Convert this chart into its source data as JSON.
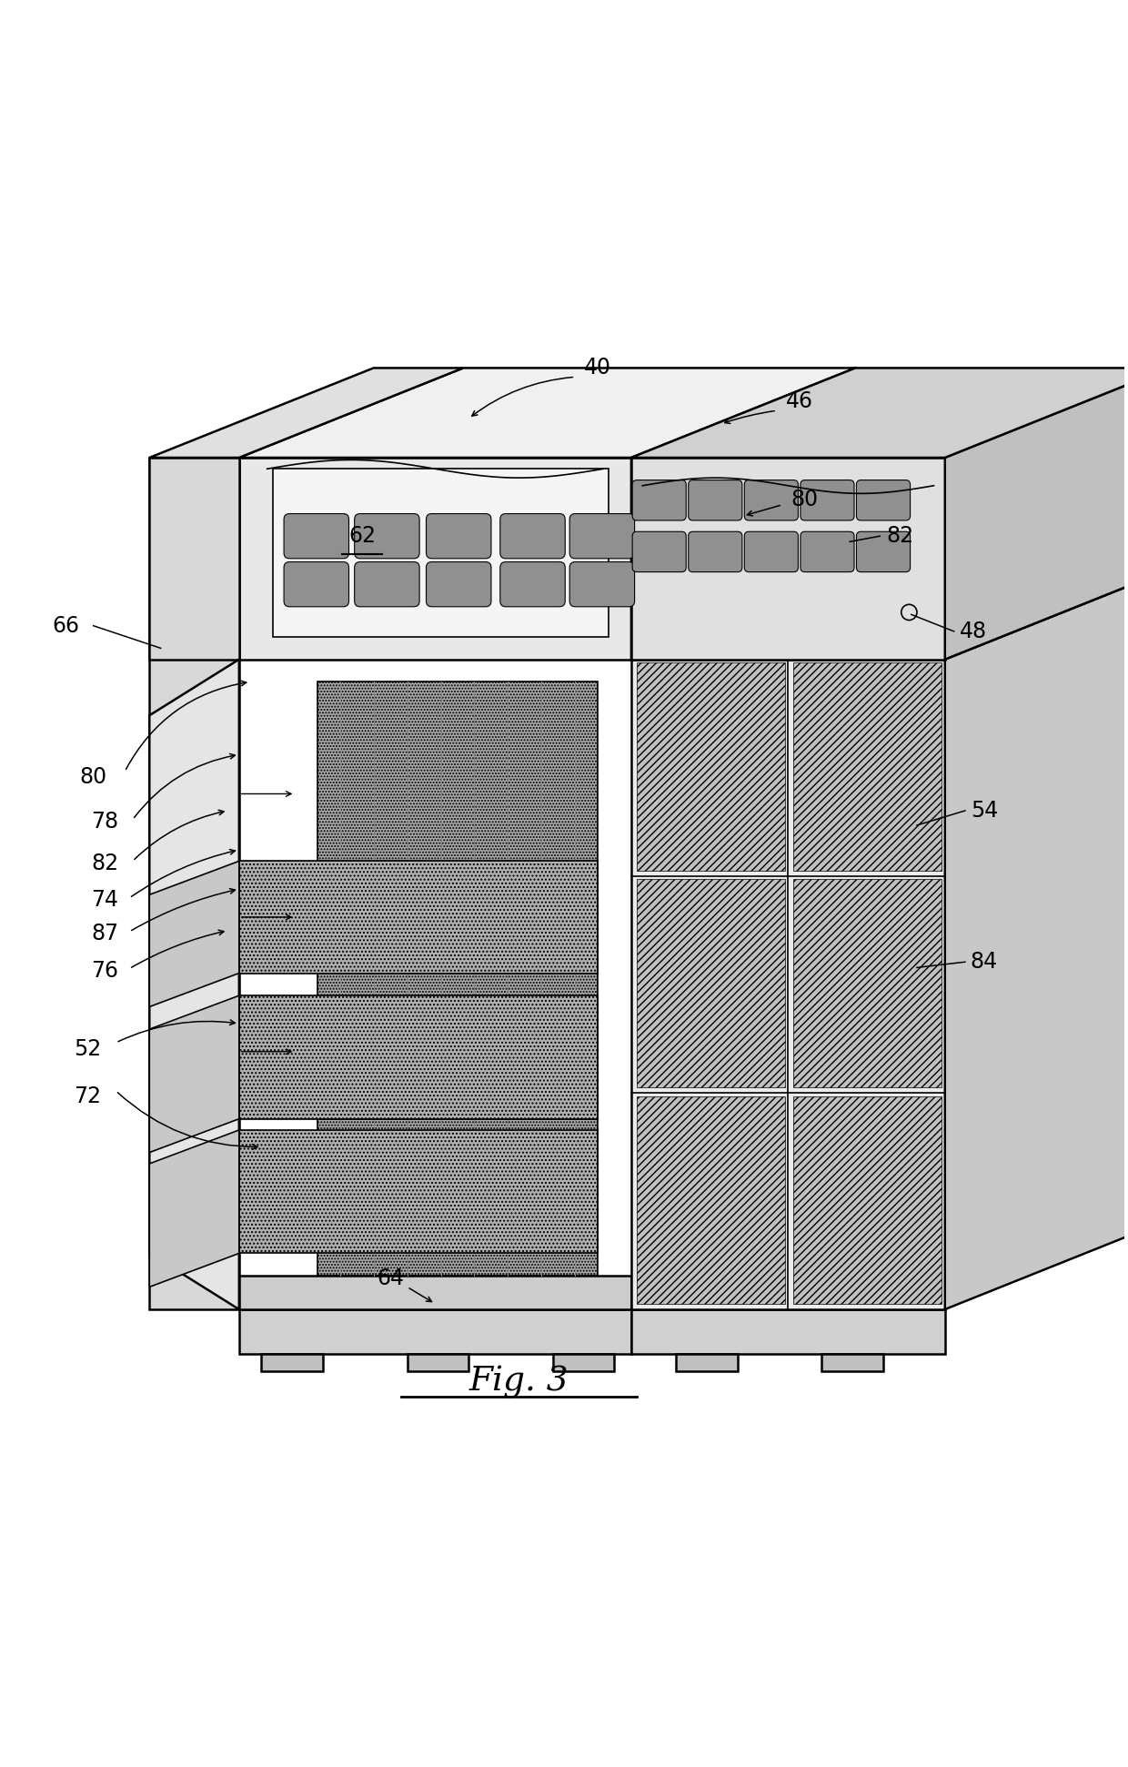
{
  "background_color": "#ffffff",
  "line_color": "#000000",
  "fig_width": 12.4,
  "fig_height": 19.42
}
